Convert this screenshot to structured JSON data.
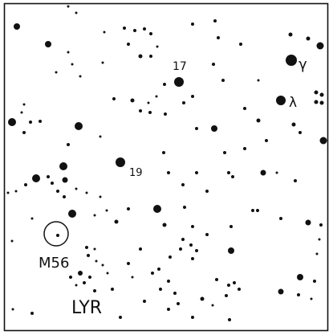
{
  "labels": {
    "star_17": "17",
    "star_19": "19",
    "gamma": "γ",
    "lambda": "λ",
    "cluster": "M56",
    "constellation": "LYR"
  },
  "colors": {
    "ink": "#111111",
    "paper": "#ffffff"
  }
}
